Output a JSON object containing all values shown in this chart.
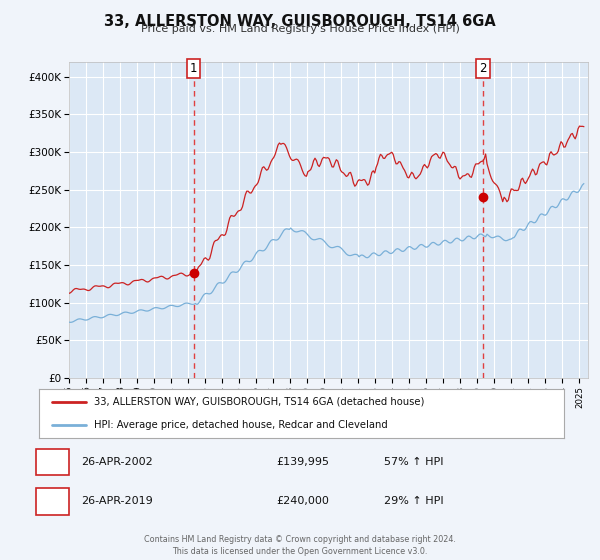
{
  "title": "33, ALLERSTON WAY, GUISBOROUGH, TS14 6GA",
  "subtitle": "Price paid vs. HM Land Registry's House Price Index (HPI)",
  "legend_line1": "33, ALLERSTON WAY, GUISBOROUGH, TS14 6GA (detached house)",
  "legend_line2": "HPI: Average price, detached house, Redcar and Cleveland",
  "transaction1_date": "26-APR-2002",
  "transaction1_price": "£139,995",
  "transaction1_hpi": "57% ↑ HPI",
  "transaction1_year": 2002.32,
  "transaction1_value": 139995,
  "transaction2_date": "26-APR-2019",
  "transaction2_price": "£240,000",
  "transaction2_hpi": "29% ↑ HPI",
  "transaction2_year": 2019.32,
  "transaction2_value": 240000,
  "ylim_min": 0,
  "ylim_max": 420000,
  "xlim_min": 1995.0,
  "xlim_max": 2025.5,
  "background_color": "#f0f4fa",
  "plot_bg_color": "#dce8f5",
  "grid_color": "#ffffff",
  "red_line_color": "#cc2222",
  "blue_line_color": "#7ab0d8",
  "dashed_line_color": "#e04040",
  "marker_color": "#cc0000",
  "legend_border_color": "#aaaaaa",
  "footer_text": "Contains HM Land Registry data © Crown copyright and database right 2024.\nThis data is licensed under the Open Government Licence v3.0."
}
